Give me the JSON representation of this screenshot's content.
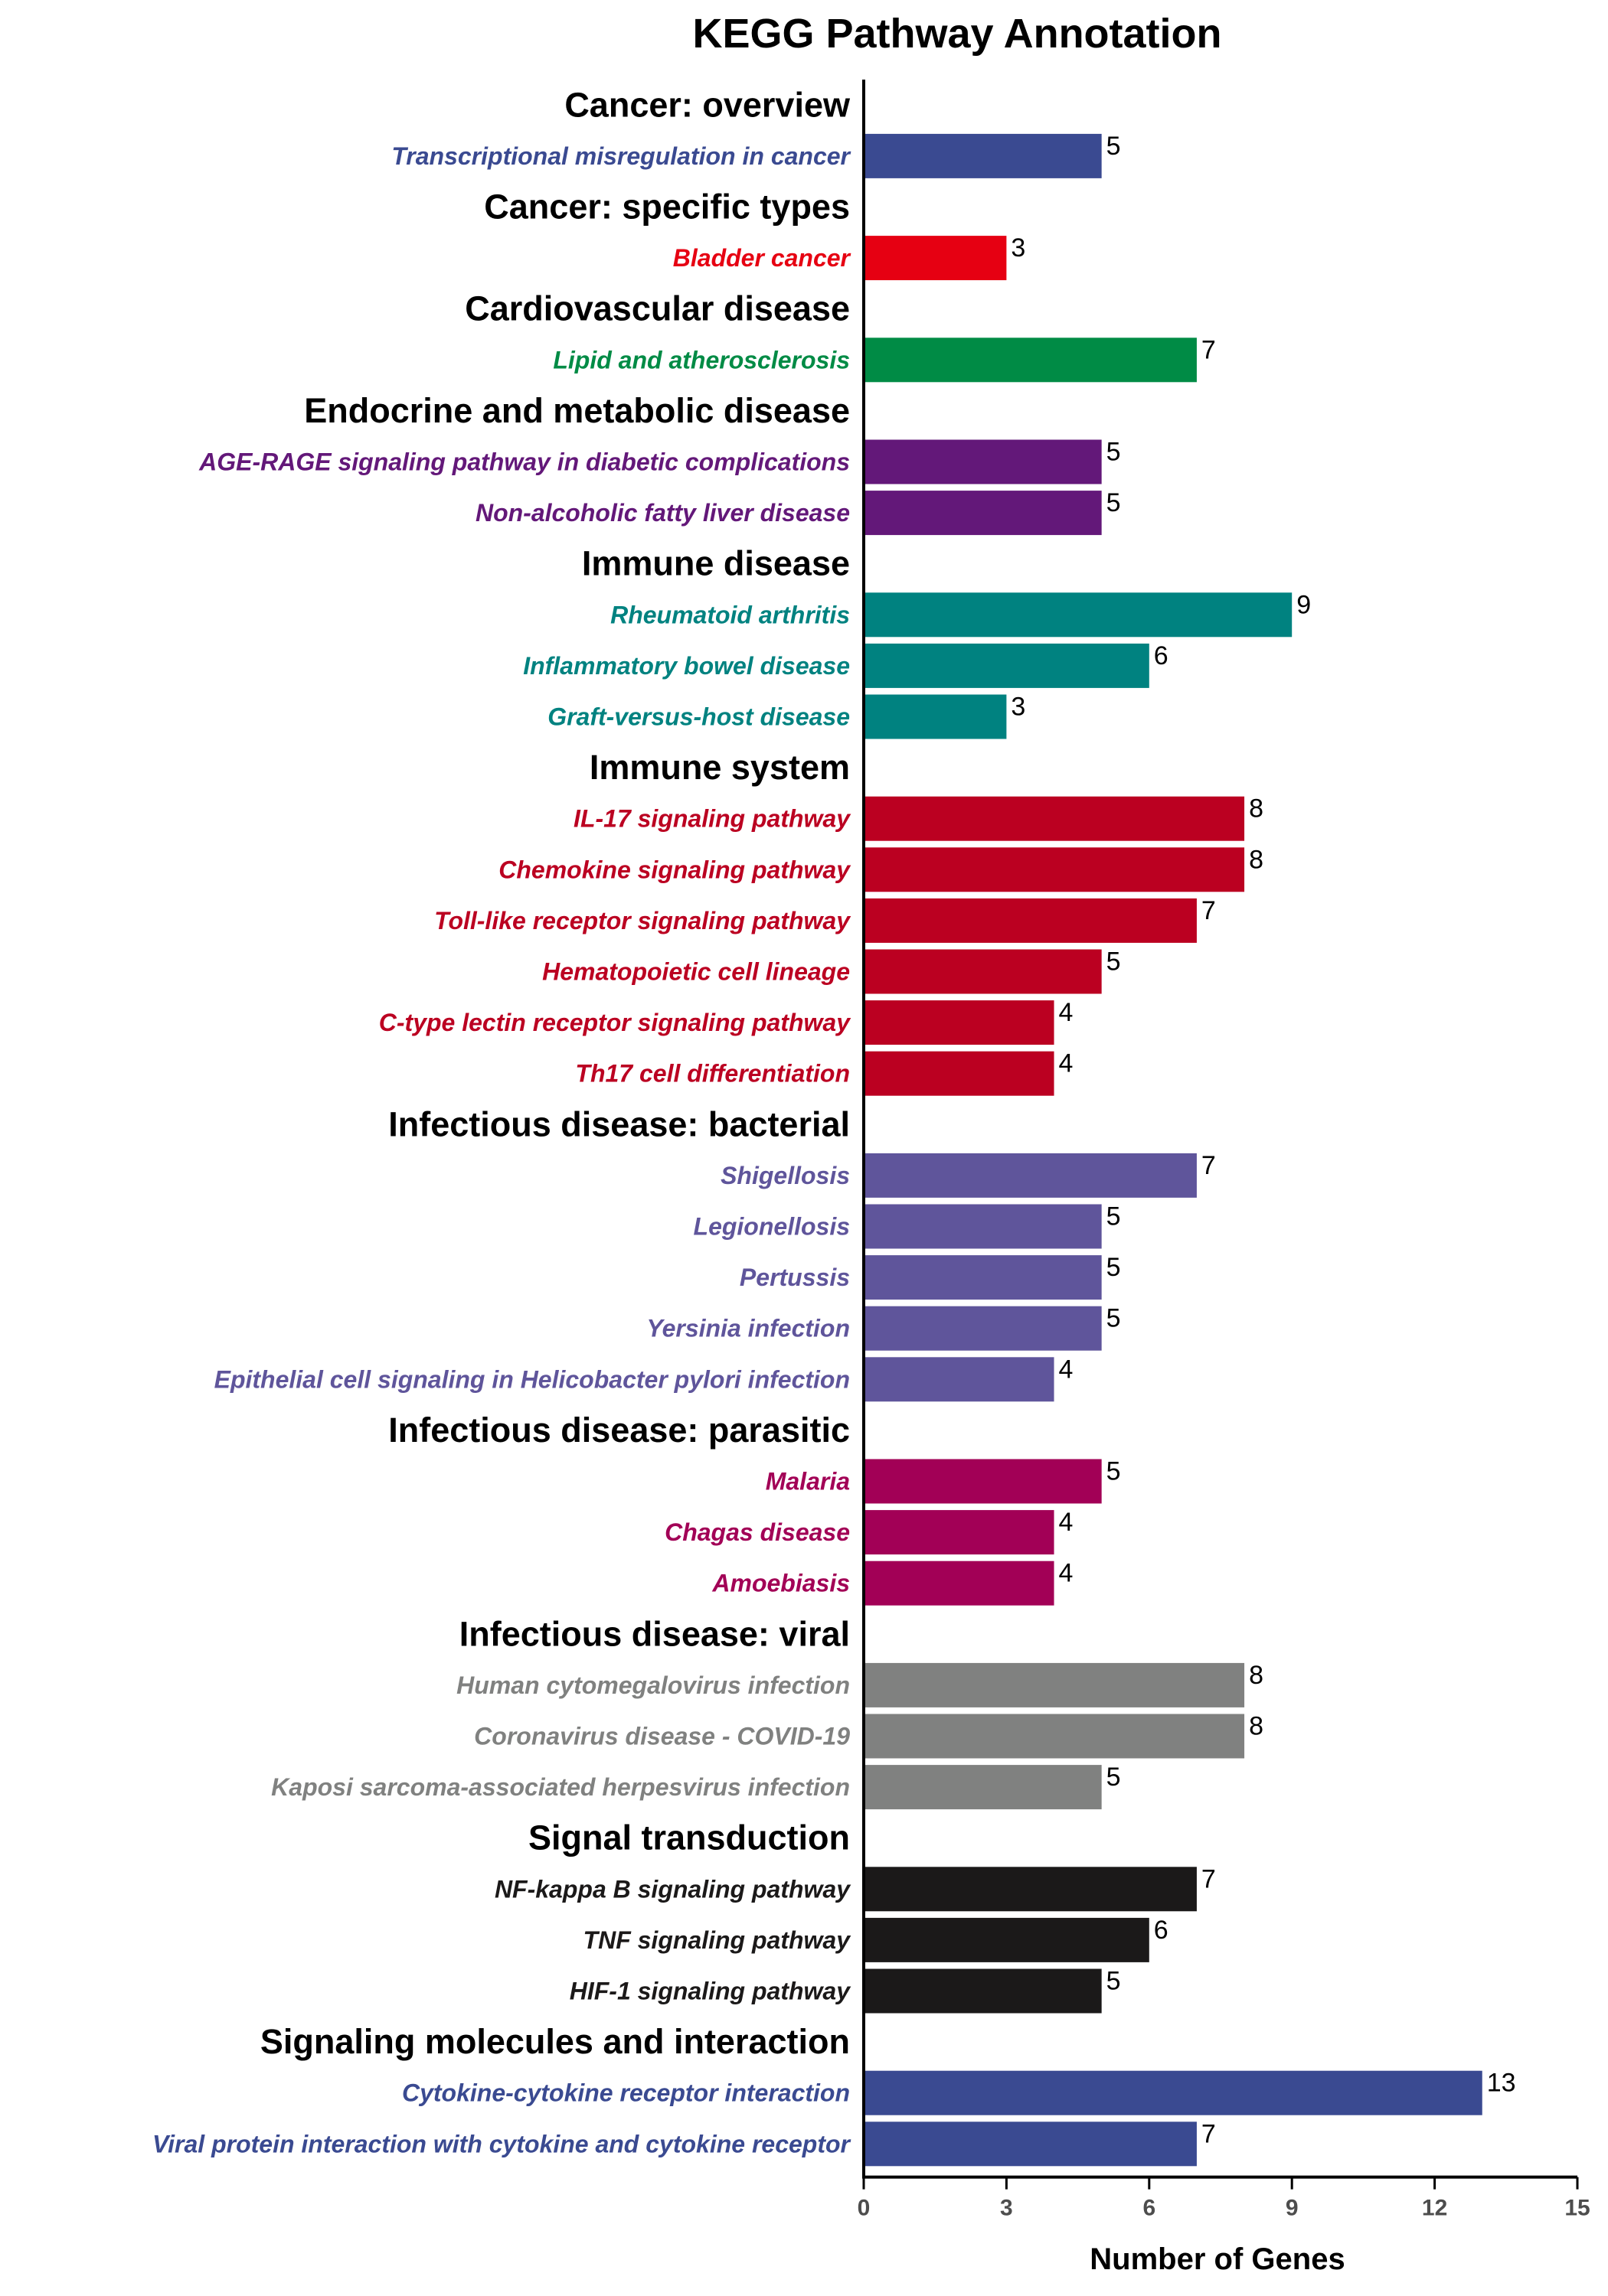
{
  "chart_data": {
    "type": "bar",
    "orientation": "horizontal",
    "title": "KEGG Pathway Annotation",
    "xlabel": "Number of Genes",
    "ylabel": "",
    "xlim": [
      0,
      15
    ],
    "xticks": [
      0,
      3,
      6,
      9,
      12,
      15
    ],
    "grid": false,
    "legend": "none",
    "groups": [
      {
        "name": "Cancer: overview",
        "color": "#3A4A91",
        "items": [
          {
            "label": "Transcriptional misregulation in cancer",
            "value": 5
          }
        ]
      },
      {
        "name": "Cancer: specific types",
        "color": "#E60012",
        "items": [
          {
            "label": "Bladder cancer",
            "value": 3
          }
        ]
      },
      {
        "name": "Cardiovascular disease",
        "color": "#008B45",
        "items": [
          {
            "label": "Lipid and atherosclerosis",
            "value": 7
          }
        ]
      },
      {
        "name": "Endocrine and metabolic disease",
        "color": "#631879",
        "items": [
          {
            "label": "AGE-RAGE signaling pathway in diabetic complications",
            "value": 5
          },
          {
            "label": "Non-alcoholic fatty liver disease",
            "value": 5
          }
        ]
      },
      {
        "name": "Immune disease",
        "color": "#008280",
        "items": [
          {
            "label": "Rheumatoid arthritis",
            "value": 9
          },
          {
            "label": "Inflammatory bowel disease",
            "value": 6
          },
          {
            "label": "Graft-versus-host disease",
            "value": 3
          }
        ]
      },
      {
        "name": "Immune system",
        "color": "#BB0021",
        "items": [
          {
            "label": "IL-17 signaling pathway",
            "value": 8
          },
          {
            "label": "Chemokine signaling pathway",
            "value": 8
          },
          {
            "label": "Toll-like receptor signaling pathway",
            "value": 7
          },
          {
            "label": "Hematopoietic cell lineage",
            "value": 5
          },
          {
            "label": "C-type lectin receptor signaling pathway",
            "value": 4
          },
          {
            "label": "Th17 cell differentiation",
            "value": 4
          }
        ]
      },
      {
        "name": "Infectious disease: bacterial",
        "color": "#5F559B",
        "items": [
          {
            "label": "Shigellosis",
            "value": 7
          },
          {
            "label": "Legionellosis",
            "value": 5
          },
          {
            "label": "Pertussis",
            "value": 5
          },
          {
            "label": "Yersinia infection",
            "value": 5
          },
          {
            "label": "Epithelial cell signaling in Helicobacter pylori infection",
            "value": 4
          }
        ]
      },
      {
        "name": "Infectious disease: parasitic",
        "color": "#A20056",
        "items": [
          {
            "label": "Malaria",
            "value": 5
          },
          {
            "label": "Chagas disease",
            "value": 4
          },
          {
            "label": "Amoebiasis",
            "value": 4
          }
        ]
      },
      {
        "name": "Infectious disease: viral",
        "color": "#808180",
        "items": [
          {
            "label": "Human cytomegalovirus infection",
            "value": 8
          },
          {
            "label": "Coronavirus disease - COVID-19",
            "value": 8
          },
          {
            "label": "Kaposi sarcoma-associated herpesvirus infection",
            "value": 5
          }
        ]
      },
      {
        "name": "Signal transduction",
        "color": "#1B1919",
        "items": [
          {
            "label": "NF-kappa B signaling pathway",
            "value": 7
          },
          {
            "label": "TNF signaling pathway",
            "value": 6
          },
          {
            "label": "HIF-1 signaling pathway",
            "value": 5
          }
        ]
      },
      {
        "name": "Signaling molecules and interaction",
        "color": "#3A4A91",
        "items": [
          {
            "label": "Cytokine-cytokine receptor interaction",
            "value": 13
          },
          {
            "label": "Viral protein interaction with cytokine and cytokine receptor",
            "value": 7
          }
        ]
      }
    ]
  }
}
